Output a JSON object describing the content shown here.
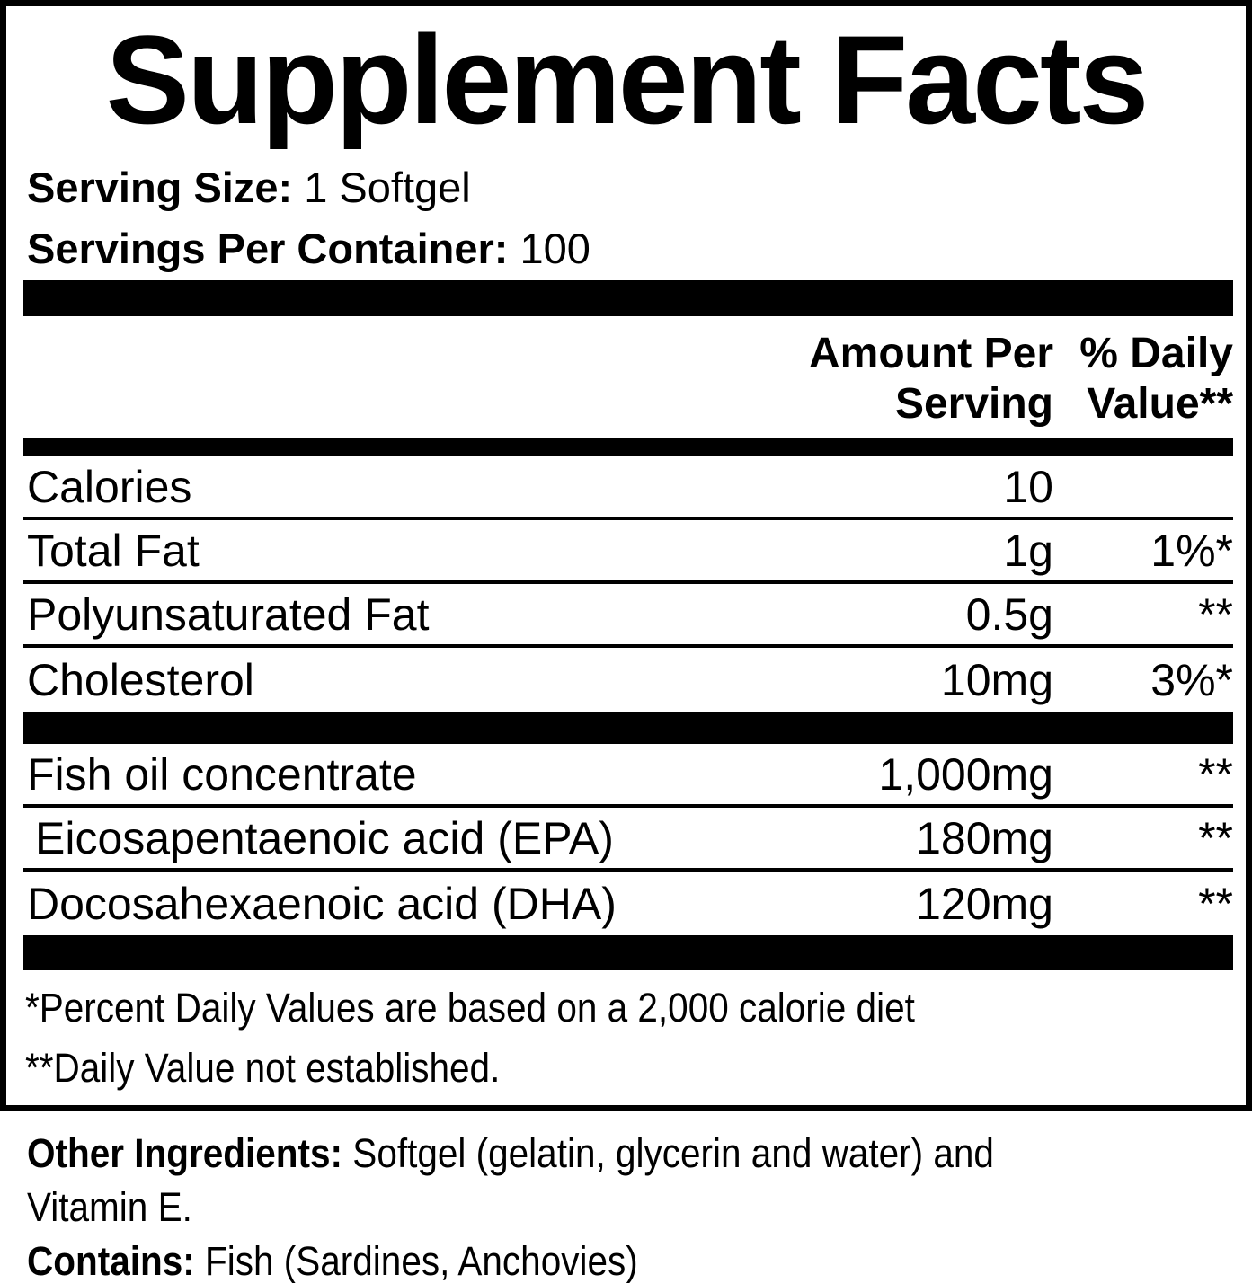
{
  "colors": {
    "text": "#000000",
    "background": "#ffffff"
  },
  "panel": {
    "title": "Supplement Facts",
    "serving_size": {
      "label": "Serving Size:",
      "value": "1 Softgel"
    },
    "servings_per_container": {
      "label": "Servings Per Container:",
      "value": "100"
    },
    "header": {
      "amount_per_serving": "Amount Per Serving",
      "percent_daily_value": "% Daily Value**"
    },
    "nutrient_rows": [
      {
        "name": "Calories",
        "amount": "10",
        "daily_value": ""
      },
      {
        "name": "Total Fat",
        "amount": "1g",
        "daily_value": "1%*"
      },
      {
        "name": "Polyunsaturated Fat",
        "amount": "0.5g",
        "daily_value": "**"
      },
      {
        "name": "Cholesterol",
        "amount": "10mg",
        "daily_value": "3%*"
      }
    ],
    "ingredient_rows": [
      {
        "name": "Fish oil concentrate",
        "amount": "1,000mg",
        "daily_value": "**"
      },
      {
        "name": "Eicosapentaenoic acid (EPA)",
        "amount": "180mg",
        "daily_value": "**"
      },
      {
        "name": "Docosahexaenoic acid (DHA)",
        "amount": "120mg",
        "daily_value": "**"
      }
    ],
    "footnotes": [
      "*Percent Daily Values are based on a 2,000 calorie diet",
      "**Daily Value not established."
    ]
  },
  "below_panel": {
    "other_ingredients": {
      "label": "Other Ingredients:",
      "value": "Softgel (gelatin, glycerin and water) and Vitamin E."
    },
    "contains": {
      "label": "Contains:",
      "value": "Fish (Sardines, Anchovies)"
    }
  }
}
